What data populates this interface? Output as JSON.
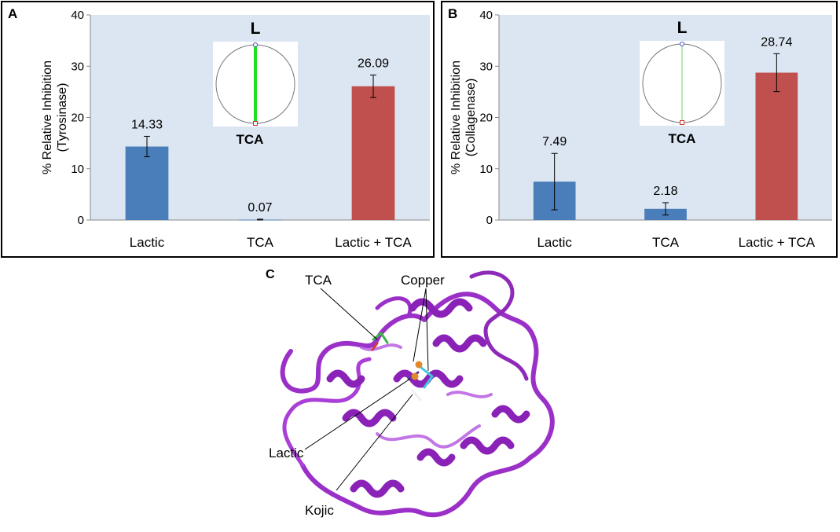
{
  "panels": {
    "a_letter": "A",
    "b_letter": "B",
    "c_letter": "C"
  },
  "chart_data": [
    {
      "type": "bar",
      "panel": "A",
      "categories": [
        "Lactic",
        "TCA",
        "Lactic + TCA"
      ],
      "values": [
        14.33,
        0.07,
        26.09
      ],
      "error": [
        2.0,
        0.1,
        2.2
      ],
      "data_labels": [
        "14.33",
        "0.07",
        "26.09"
      ],
      "colors": [
        "#4a7ebb",
        "#4a7ebb",
        "#c0504d"
      ],
      "ylabel_line1": "% Relative Inhibition",
      "ylabel_line2": "(Tyrosinase)",
      "ylim": [
        0,
        40
      ],
      "yticks": [
        "0",
        "10",
        "20",
        "30",
        "40"
      ],
      "plot_bg": "#dce6f2",
      "inset": {
        "top_label": "L",
        "bottom_label": "TCA",
        "line_color": "#22dd22"
      }
    },
    {
      "type": "bar",
      "panel": "B",
      "categories": [
        "Lactic",
        "TCA",
        "Lactic + TCA"
      ],
      "values": [
        7.49,
        2.18,
        28.74
      ],
      "error": [
        5.5,
        1.2,
        3.7
      ],
      "data_labels": [
        "7.49",
        "2.18",
        "28.74"
      ],
      "colors": [
        "#4a7ebb",
        "#4a7ebb",
        "#c0504d"
      ],
      "ylabel_line1": "% Relative Inhibition",
      "ylabel_line2": "(Collagenase)",
      "ylim": [
        0,
        40
      ],
      "yticks": [
        "0",
        "10",
        "20",
        "30",
        "40"
      ],
      "plot_bg": "#dce6f2",
      "inset": {
        "top_label": "L",
        "bottom_label": "TCA",
        "line_color": "#9fe09f"
      }
    }
  ],
  "structure": {
    "labels": [
      "TCA",
      "Copper",
      "Lactic",
      "Kojic"
    ],
    "ribbon_color": "#9b30c8"
  }
}
